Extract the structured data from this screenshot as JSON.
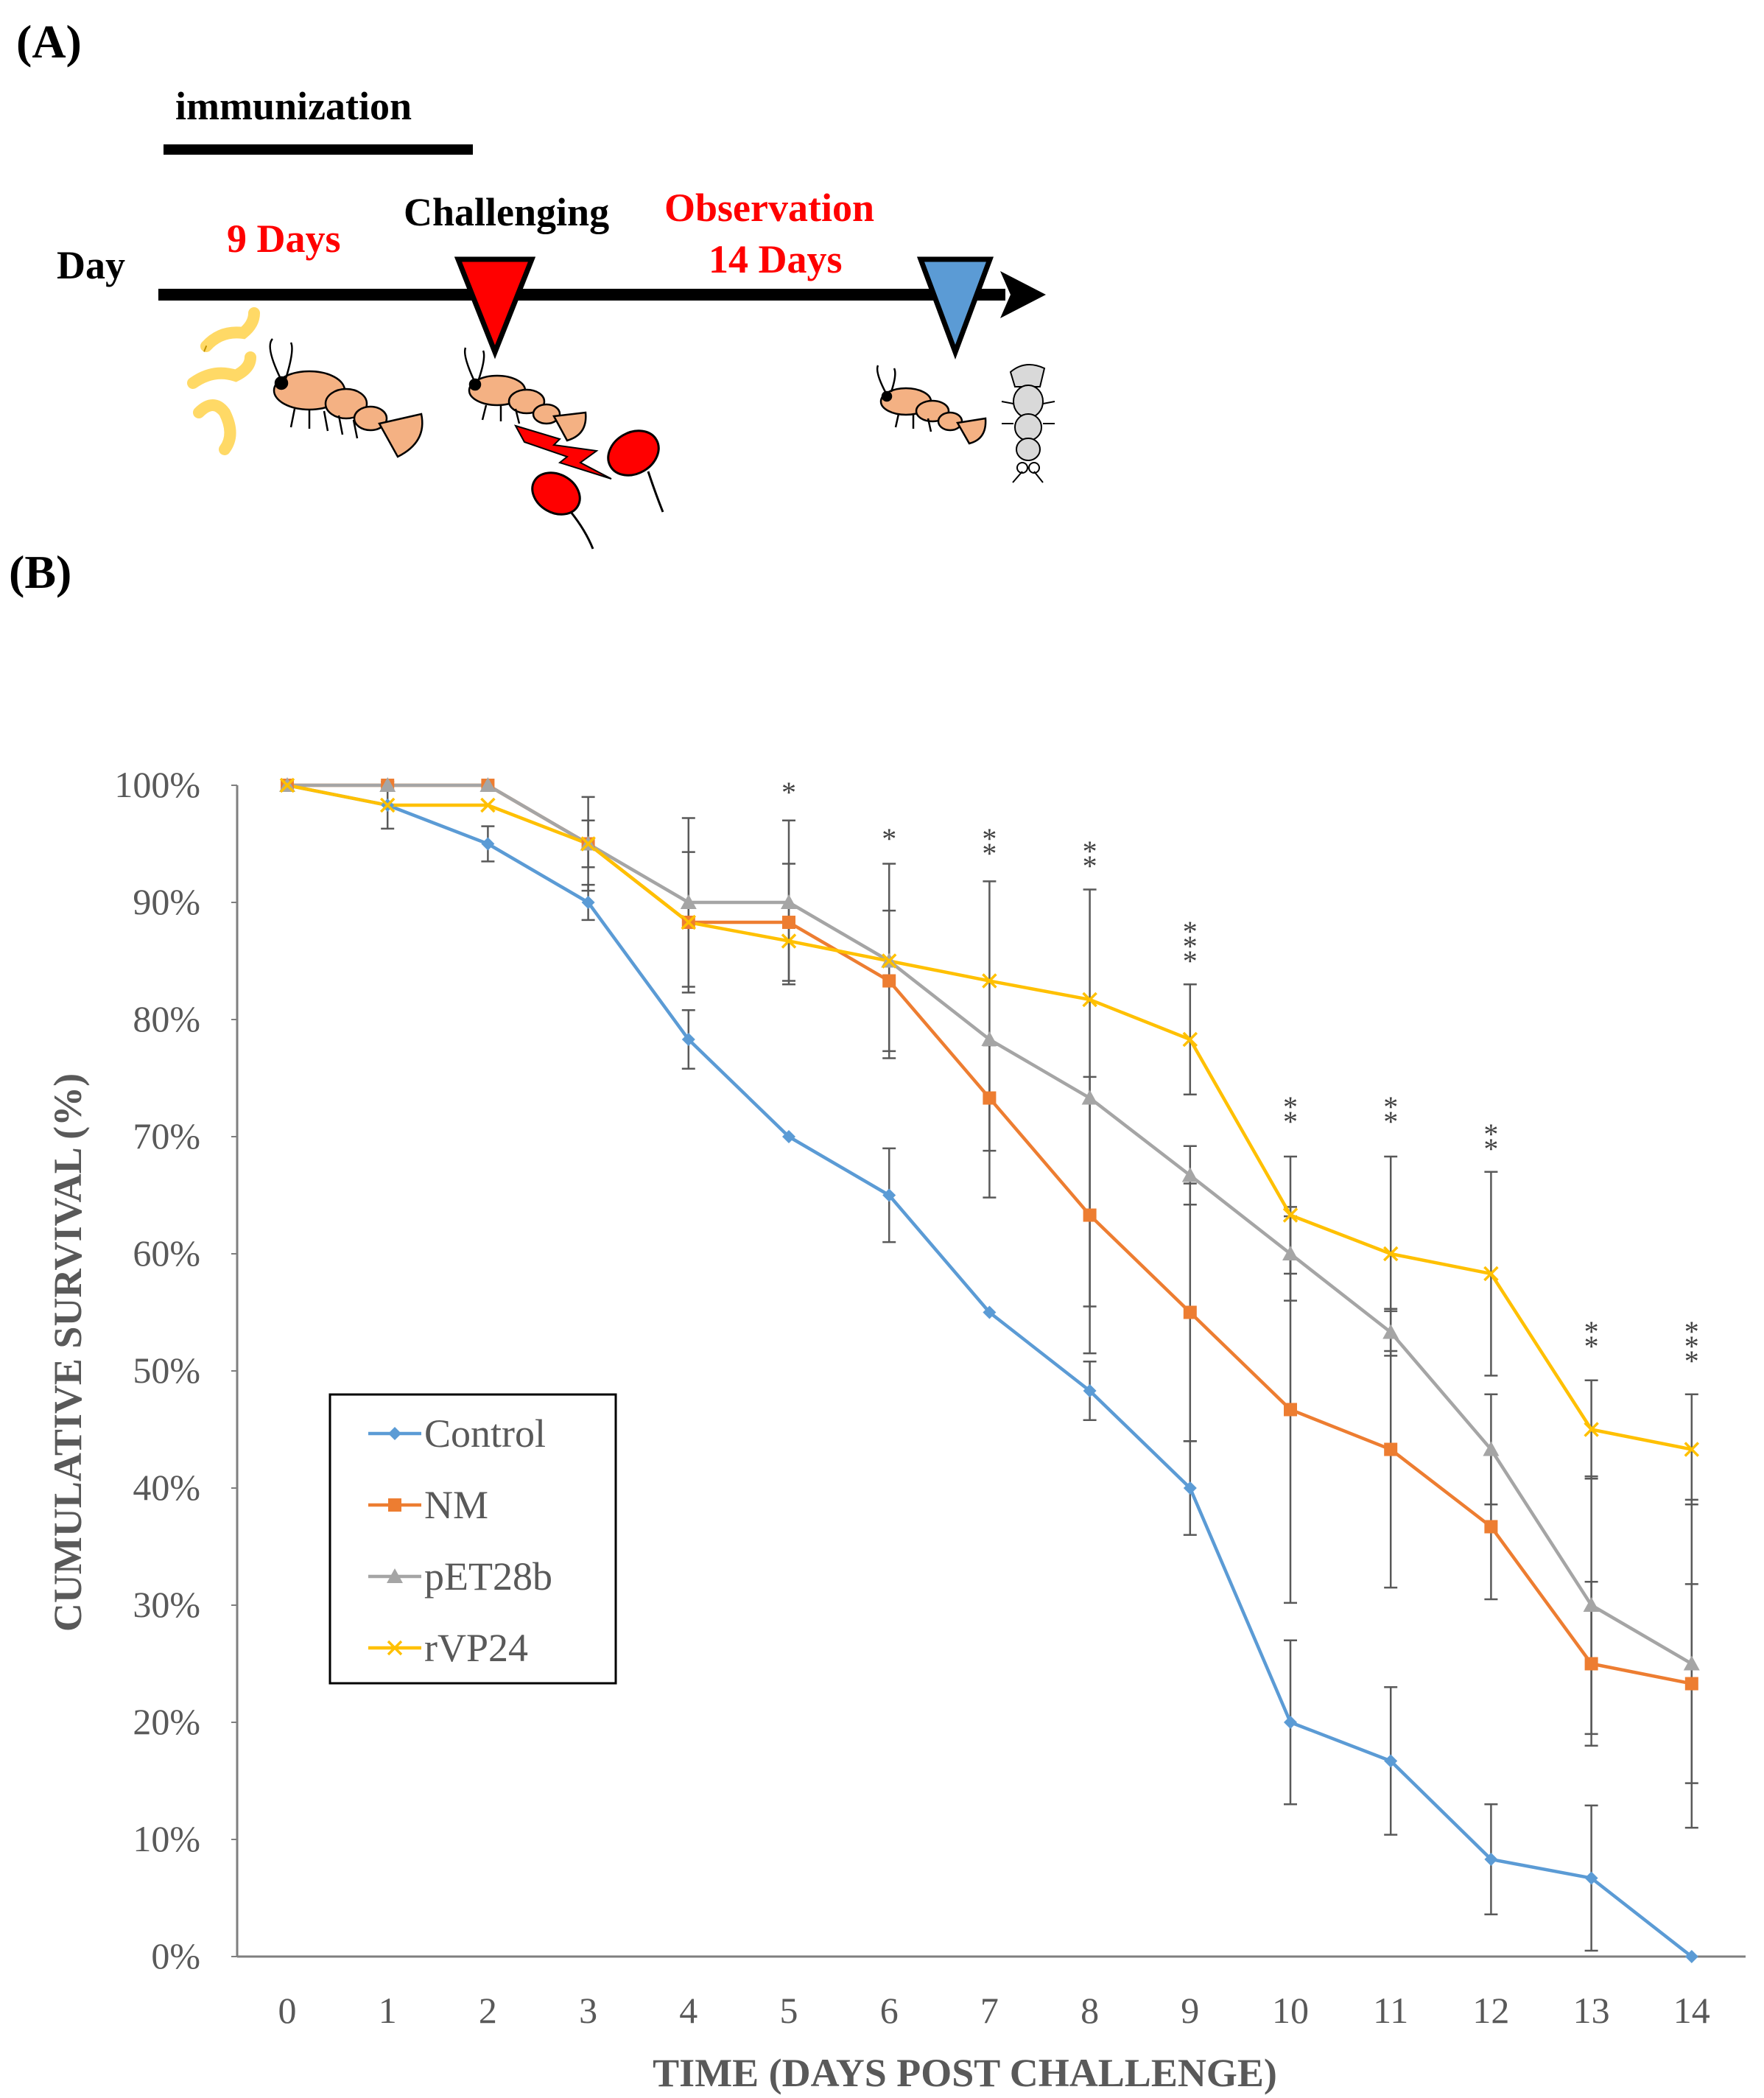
{
  "panel_a": {
    "label": "(A)",
    "immunization_label": "immunization",
    "day_label": "Day",
    "nine_days": "9 Days",
    "challenging_label": "Challenging",
    "observation_label": "Observation",
    "fourteen_days": "14 Days",
    "colors": {
      "challenge_marker": "#ff0000",
      "observation_marker": "#5b9bd5",
      "shrimp": "#f4b183",
      "feed": "#ffd966"
    }
  },
  "panel_b": {
    "label": "(B)"
  },
  "chart_data": {
    "type": "line",
    "title": "",
    "xlabel": "TIME (DAYS POST CHALLENGE)",
    "ylabel": "CUMULATIVE SURVIVAL (%)",
    "x": [
      0,
      1,
      2,
      3,
      4,
      5,
      6,
      7,
      8,
      9,
      10,
      11,
      12,
      13,
      14
    ],
    "x_tick_labels": [
      "0",
      "1",
      "2",
      "3",
      "4",
      "5",
      "6",
      "7",
      "8",
      "9",
      "10",
      "11",
      "12",
      "13",
      "14"
    ],
    "y_tick_labels": [
      "0%",
      "10%",
      "20%",
      "30%",
      "40%",
      "50%",
      "60%",
      "70%",
      "80%",
      "90%",
      "100%"
    ],
    "ylim": [
      0,
      100
    ],
    "legend_position": "left-middle",
    "series": [
      {
        "name": "Control",
        "color": "#5b9bd5",
        "marker": "diamond",
        "values": [
          100,
          98.3,
          95,
          90,
          78.3,
          70,
          65,
          55,
          48.3,
          40,
          20,
          16.7,
          8.3,
          6.7,
          0
        ],
        "errors": [
          0,
          2,
          1.5,
          1.5,
          2.5,
          0,
          4,
          0,
          2.5,
          4,
          7,
          6.3,
          4.7,
          6.2,
          0
        ]
      },
      {
        "name": "NM",
        "color": "#ed7d31",
        "marker": "square",
        "values": [
          100,
          100,
          100,
          95,
          88.3,
          88.3,
          83.3,
          73.3,
          63.3,
          55,
          46.7,
          43.3,
          36.7,
          25,
          23.3
        ],
        "errors": [
          0,
          0,
          0,
          2,
          6,
          5,
          6,
          4.5,
          11.8,
          11,
          16.5,
          11.8,
          6.2,
          7,
          8.5
        ]
      },
      {
        "name": "pET28b",
        "color": "#a5a5a5",
        "marker": "triangle",
        "values": [
          100,
          100,
          100,
          95,
          90,
          90,
          85,
          78.3,
          73.3,
          66.7,
          60,
          53.3,
          43.3,
          30,
          25
        ],
        "errors": [
          0,
          0,
          0,
          4,
          7.2,
          7,
          8.3,
          13.5,
          17.8,
          2.5,
          4,
          2,
          4.7,
          11,
          14
        ]
      },
      {
        "name": "rVP24",
        "color": "#ffc000",
        "marker": "x",
        "values": [
          100,
          98.3,
          98.3,
          95,
          88.3,
          86.7,
          85,
          83.3,
          81.7,
          78.3,
          63.3,
          60,
          58.3,
          45,
          43.3
        ],
        "errors": [
          0,
          0,
          0,
          0,
          0,
          0,
          0,
          0,
          0,
          4.7,
          5,
          8.3,
          8.7,
          4.2,
          4.7
        ]
      }
    ],
    "significance": [
      {
        "x": 5,
        "label": "*"
      },
      {
        "x": 6,
        "label": "*"
      },
      {
        "x": 7,
        "label": "**"
      },
      {
        "x": 8,
        "label": "**"
      },
      {
        "x": 9,
        "label": "***"
      },
      {
        "x": 10,
        "label": "**"
      },
      {
        "x": 11,
        "label": "**"
      },
      {
        "x": 12,
        "label": "**"
      },
      {
        "x": 13,
        "label": "**"
      },
      {
        "x": 14,
        "label": "***"
      }
    ]
  }
}
